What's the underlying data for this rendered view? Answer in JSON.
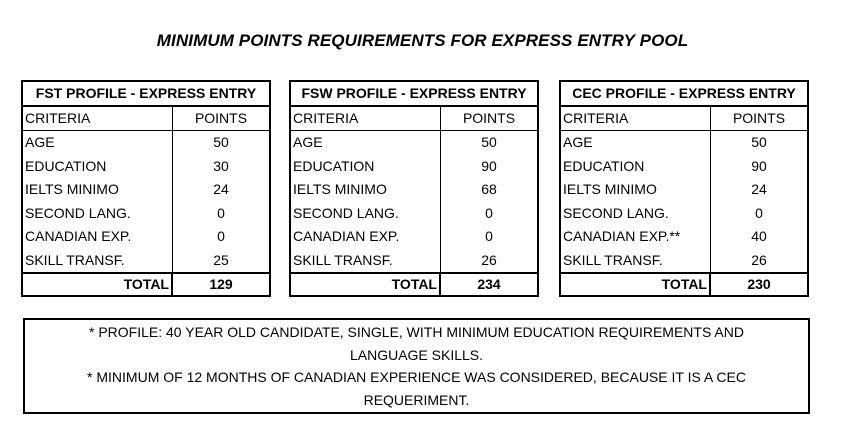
{
  "title": "MINIMUM POINTS REQUIREMENTS FOR EXPRESS ENTRY POOL",
  "column_headers": {
    "criteria": "CRITERIA",
    "points": "POINTS",
    "total": "TOTAL"
  },
  "tables": [
    {
      "header": "FST PROFILE - EXPRESS ENTRY",
      "rows": [
        {
          "criteria": "AGE",
          "points": "50"
        },
        {
          "criteria": "EDUCATION",
          "points": "30"
        },
        {
          "criteria": "IELTS MINIMO",
          "points": "24"
        },
        {
          "criteria": "SECOND LANG.",
          "points": "0"
        },
        {
          "criteria": "CANADIAN EXP.",
          "points": "0"
        },
        {
          "criteria": "SKILL TRANSF.",
          "points": "25"
        }
      ],
      "total": "129"
    },
    {
      "header": "FSW PROFILE - EXPRESS ENTRY",
      "rows": [
        {
          "criteria": "AGE",
          "points": "50"
        },
        {
          "criteria": "EDUCATION",
          "points": "90"
        },
        {
          "criteria": "IELTS MINIMO",
          "points": "68"
        },
        {
          "criteria": "SECOND LANG.",
          "points": "0"
        },
        {
          "criteria": "CANADIAN EXP.",
          "points": "0"
        },
        {
          "criteria": "SKILL TRANSF.",
          "points": "26"
        }
      ],
      "total": "234"
    },
    {
      "header": "CEC PROFILE - EXPRESS ENTRY",
      "rows": [
        {
          "criteria": "AGE",
          "points": "50"
        },
        {
          "criteria": "EDUCATION",
          "points": "90"
        },
        {
          "criteria": "IELTS MINIMO",
          "points": "24"
        },
        {
          "criteria": "SECOND LANG.",
          "points": "0"
        },
        {
          "criteria": "CANADIAN EXP.**",
          "points": "40"
        },
        {
          "criteria": "SKILL TRANSF.",
          "points": "26"
        }
      ],
      "total": "230"
    }
  ],
  "notes": {
    "line1": "* PROFILE: 40 YEAR OLD CANDIDATE, SINGLE,  WITH MINIMUM EDUCATION REQUIREMENTS AND",
    "line2": "LANGUAGE SKILLS.",
    "line3": "* MINIMUM OF 12 MONTHS OF CANADIAN EXPERIENCE WAS CONSIDERED, BECAUSE IT IS A CEC",
    "line4": "REQUERIMENT."
  }
}
